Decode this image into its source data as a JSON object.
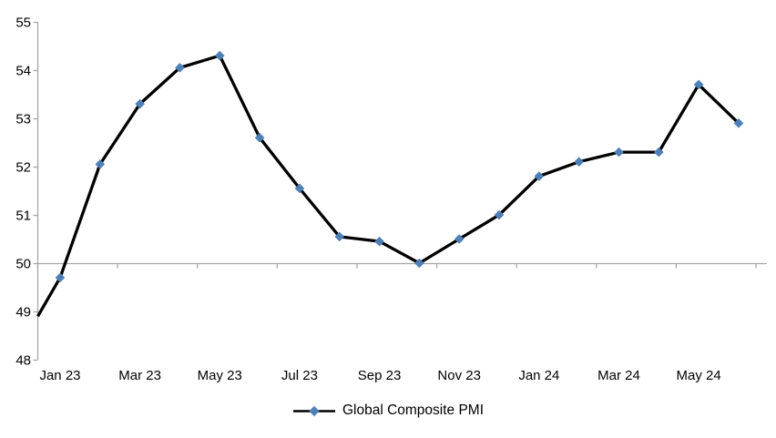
{
  "chart_data": {
    "type": "line",
    "title": "",
    "categories": [
      "Jan 23",
      "Feb 23",
      "Mar 23",
      "Apr 23",
      "May 23",
      "Jun 23",
      "Jul 23",
      "Aug 23",
      "Sep 23",
      "Oct 23",
      "Nov 23",
      "Dec 23",
      "Jan 24",
      "Feb 24",
      "Mar 24",
      "Apr 24",
      "May 24",
      "Jun 24"
    ],
    "series": [
      {
        "name": "Global Composite PMI",
        "values": [
          49.7,
          52.05,
          53.3,
          54.05,
          54.3,
          52.6,
          51.55,
          50.55,
          50.45,
          50.0,
          50.5,
          51.0,
          51.8,
          52.1,
          52.3,
          52.3,
          53.7,
          52.9
        ]
      }
    ],
    "left_edge_entry_value": 48.9,
    "x_tick_labels": [
      "Jan 23",
      "Mar 23",
      "May 23",
      "Jul 23",
      "Sep 23",
      "Nov 23",
      "Jan 24",
      "Mar 24",
      "May 24"
    ],
    "y_tick_labels": [
      "55",
      "54",
      "53",
      "52",
      "51",
      "50",
      "49",
      "48"
    ],
    "ylim": [
      48,
      55
    ],
    "x_axis_crosses_at": 50,
    "grid": "off",
    "legend_position": "bottom-center",
    "marker_shape": "diamond",
    "colors": {
      "line": "#000000",
      "marker": "#4E80B6",
      "axis": "#A6A6A6",
      "text": "#000000"
    }
  }
}
